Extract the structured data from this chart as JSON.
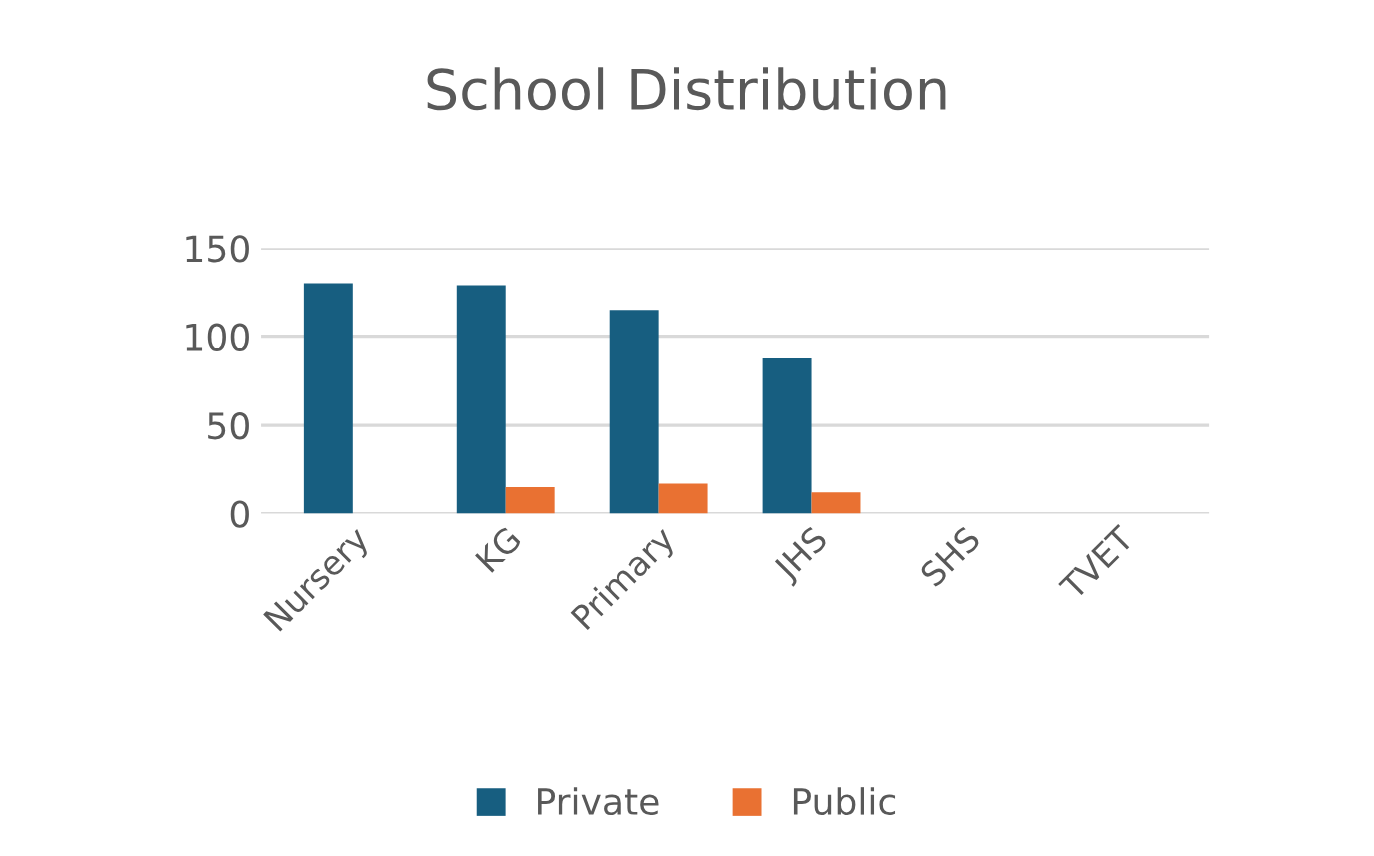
{
  "chart_data": {
    "type": "bar",
    "title": "School Distribution",
    "categories": [
      "Nursery",
      "KG",
      "Primary",
      "JHS",
      "SHS",
      "TVET"
    ],
    "series": [
      {
        "name": "Private",
        "color": "#175e80",
        "values": [
          130,
          129,
          115,
          88,
          0,
          0
        ]
      },
      {
        "name": "Public",
        "color": "#e97132",
        "values": [
          0,
          15,
          17,
          12,
          0,
          0
        ]
      }
    ],
    "ylim": [
      0,
      150
    ],
    "yticks": [
      0,
      50,
      100,
      150
    ],
    "grid": "y",
    "legend": "bottom"
  }
}
